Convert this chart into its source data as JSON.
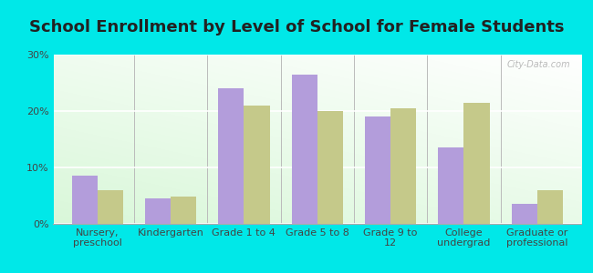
{
  "title": "School Enrollment by Level of School for Female Students",
  "categories": [
    "Nursery,\npreschool",
    "Kindergarten",
    "Grade 1 to 4",
    "Grade 5 to 8",
    "Grade 9 to\n12",
    "College\nundergrad",
    "Graduate or\nprofessional"
  ],
  "huron": [
    8.5,
    4.5,
    24.0,
    26.5,
    19.0,
    13.5,
    3.5
  ],
  "new_york": [
    6.0,
    4.8,
    21.0,
    20.0,
    20.5,
    21.5,
    6.0
  ],
  "huron_color": "#b39ddb",
  "new_york_color": "#c5c98a",
  "background_color": "#00e8e8",
  "ylim": [
    0,
    30
  ],
  "yticks": [
    0,
    10,
    20,
    30
  ],
  "ytick_labels": [
    "0%",
    "10%",
    "20%",
    "30%"
  ],
  "title_fontsize": 13,
  "tick_fontsize": 8,
  "legend_fontsize": 9,
  "bar_width": 0.35,
  "watermark": "City-Data.com"
}
